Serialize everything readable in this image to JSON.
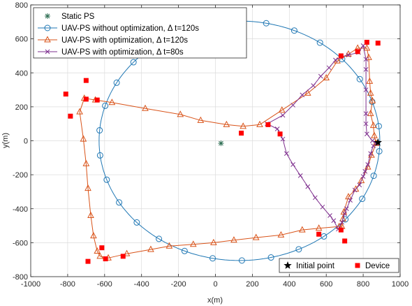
{
  "chart_data": {
    "type": "scatter",
    "xlabel": "x(m)",
    "ylabel": "y(m)",
    "xlim": [
      -1000,
      1000
    ],
    "ylim": [
      -800,
      800
    ],
    "xticks": [
      -1000,
      -800,
      -600,
      -400,
      -200,
      0,
      200,
      400,
      600,
      800,
      1000
    ],
    "yticks": [
      -800,
      -600,
      -400,
      -200,
      0,
      200,
      400,
      600,
      800
    ],
    "grid": true,
    "legend_position": "top-left",
    "legend2_position": "bottom-right",
    "series": [
      {
        "name": "Static PS",
        "marker": "asterisk",
        "color": "#2e6e53",
        "line": false,
        "points": [
          [
            30,
            -15
          ]
        ]
      },
      {
        "name": "UAV-PS without optimization, Δ t=120s",
        "marker": "circle",
        "color": "#1f77b4",
        "line": true,
        "shape": "ellipse",
        "center": [
          130,
          0
        ],
        "radii": [
          760,
          705
        ],
        "start_angle_deg": -5,
        "marker_count": 30
      },
      {
        "name": "UAV-PS with optimization, Δ t=120s",
        "marker": "triangle",
        "color": "#d95319",
        "line": true,
        "points": [
          [
            870,
            -15
          ],
          [
            845,
            -85
          ],
          [
            825,
            -155
          ],
          [
            790,
            -235
          ],
          [
            760,
            -285
          ],
          [
            720,
            -330
          ],
          [
            695,
            -420
          ],
          [
            690,
            -460
          ],
          [
            685,
            -505
          ],
          [
            670,
            -505
          ],
          [
            560,
            -515
          ],
          [
            470,
            -525
          ],
          [
            355,
            -555
          ],
          [
            220,
            -570
          ],
          [
            100,
            -585
          ],
          [
            -10,
            -600
          ],
          [
            -120,
            -610
          ],
          [
            -250,
            -620
          ],
          [
            -350,
            -640
          ],
          [
            -480,
            -665
          ],
          [
            -580,
            -690
          ],
          [
            -625,
            -680
          ],
          [
            -640,
            -650
          ],
          [
            -660,
            -560
          ],
          [
            -675,
            -440
          ],
          [
            -690,
            -280
          ],
          [
            -700,
            -135
          ],
          [
            -715,
            10
          ],
          [
            -735,
            170
          ],
          [
            -710,
            250
          ],
          [
            -650,
            240
          ],
          [
            -560,
            225
          ],
          [
            -380,
            190
          ],
          [
            -190,
            155
          ],
          [
            -80,
            120
          ],
          [
            60,
            95
          ],
          [
            150,
            85
          ],
          [
            240,
            95
          ],
          [
            360,
            180
          ],
          [
            500,
            280
          ],
          [
            600,
            370
          ],
          [
            660,
            470
          ],
          [
            720,
            510
          ],
          [
            770,
            545
          ],
          [
            820,
            545
          ],
          [
            830,
            490
          ],
          [
            835,
            350
          ],
          [
            840,
            280
          ],
          [
            850,
            235
          ],
          [
            840,
            160
          ],
          [
            855,
            90
          ],
          [
            860,
            30
          ],
          [
            870,
            -15
          ]
        ]
      },
      {
        "name": "UAV-PS with optimization, Δ t=80s",
        "marker": "x",
        "color": "#7e2f8e",
        "line": true,
        "points": [
          [
            870,
            -15
          ],
          [
            855,
            -30
          ],
          [
            840,
            -75
          ],
          [
            825,
            -140
          ],
          [
            810,
            -180
          ],
          [
            800,
            -210
          ],
          [
            780,
            -260
          ],
          [
            755,
            -290
          ],
          [
            730,
            -350
          ],
          [
            710,
            -400
          ],
          [
            700,
            -430
          ],
          [
            685,
            -480
          ],
          [
            665,
            -520
          ],
          [
            640,
            -470
          ],
          [
            620,
            -440
          ],
          [
            580,
            -390
          ],
          [
            540,
            -335
          ],
          [
            500,
            -270
          ],
          [
            460,
            -205
          ],
          [
            420,
            -140
          ],
          [
            385,
            -75
          ],
          [
            365,
            10
          ],
          [
            335,
            70
          ],
          [
            280,
            100
          ],
          [
            365,
            150
          ],
          [
            420,
            210
          ],
          [
            470,
            270
          ],
          [
            530,
            325
          ],
          [
            570,
            380
          ],
          [
            615,
            430
          ],
          [
            650,
            475
          ],
          [
            680,
            495
          ],
          [
            720,
            505
          ],
          [
            775,
            520
          ],
          [
            800,
            560
          ],
          [
            815,
            480
          ],
          [
            815,
            420
          ],
          [
            815,
            300
          ],
          [
            815,
            160
          ],
          [
            815,
            100
          ],
          [
            820,
            40
          ],
          [
            850,
            0
          ],
          [
            870,
            -15
          ]
        ]
      }
    ],
    "devices": [
      [
        -810,
        275
      ],
      [
        -700,
        355
      ],
      [
        -785,
        145
      ],
      [
        -700,
        245
      ],
      [
        -640,
        240
      ],
      [
        -690,
        -710
      ],
      [
        -615,
        -630
      ],
      [
        -595,
        -695
      ],
      [
        -500,
        -680
      ],
      [
        140,
        45
      ],
      [
        285,
        95
      ],
      [
        350,
        40
      ],
      [
        680,
        500
      ],
      [
        770,
        525
      ],
      [
        820,
        580
      ],
      [
        880,
        575
      ],
      [
        560,
        -550
      ],
      [
        680,
        -525
      ],
      [
        700,
        -590
      ]
    ],
    "initial_point": [
      880,
      -10
    ],
    "legend2": {
      "initial_point_label": "Initial point",
      "device_label": "Device"
    }
  }
}
